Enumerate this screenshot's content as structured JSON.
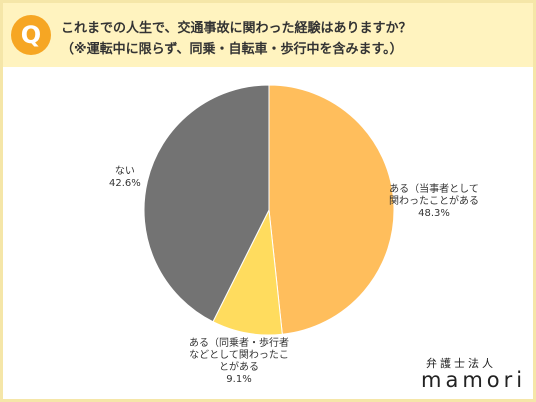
{
  "question": {
    "badge": "Q",
    "line1": "これまでの人生で、交通事故に関わった経験はありますか？",
    "line2": "（※運転中に限らず、同乗・自転車・歩行中を含みます。）"
  },
  "chart_data": {
    "type": "pie",
    "slices": [
      {
        "label_lines": [
          "ある（当事者として",
          "関わったことがある"
        ],
        "value": 48.3,
        "value_text": "48.3%",
        "color": "#FFBE5C"
      },
      {
        "label_lines": [
          "ある（同乗者・歩行者",
          "などとして関わったこ",
          "とがある"
        ],
        "value": 9.1,
        "value_text": "9.1%",
        "color": "#FFDC5E"
      },
      {
        "label_lines": [
          "ない"
        ],
        "value": 42.6,
        "value_text": "42.6%",
        "color": "#737373"
      }
    ],
    "start": "12 o'clock",
    "direction": "clockwise"
  },
  "brand": {
    "line1": "弁護士法人",
    "line2": "mamori"
  },
  "colors": {
    "header_bg": "#FFF3BF",
    "badge": "#F6A623",
    "frame": "#F5E6A8"
  }
}
